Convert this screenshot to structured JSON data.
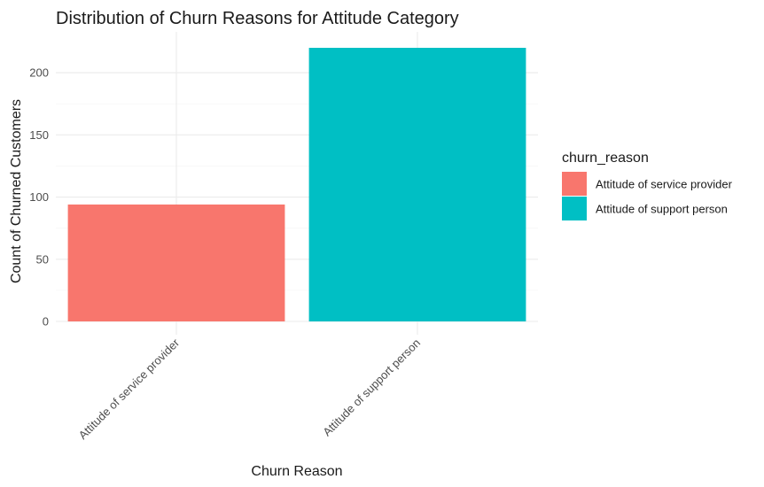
{
  "chart_data": {
    "type": "bar",
    "title": "Distribution of Churn Reasons for Attitude Category",
    "xlabel": "Churn Reason",
    "ylabel": "Count of Churned Customers",
    "categories": [
      "Attitude of service provider",
      "Attitude of support person"
    ],
    "values": [
      94,
      220
    ],
    "colors": [
      "#F8766D",
      "#00BFC4"
    ],
    "ylim": [
      0,
      220
    ],
    "yticks": [
      0,
      50,
      100,
      150,
      200
    ],
    "grid": true,
    "legend": {
      "title": "churn_reason",
      "position": "right",
      "entries": [
        "Attitude of service provider",
        "Attitude of support person"
      ]
    }
  }
}
